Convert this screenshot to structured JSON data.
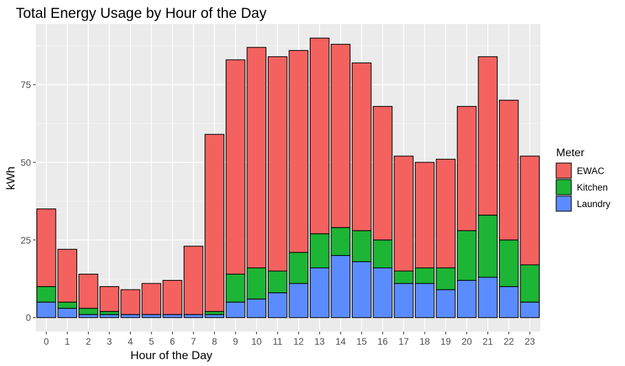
{
  "chart_data": {
    "type": "bar",
    "stacked": true,
    "title": "Total Energy Usage by Hour of the Day",
    "xlabel": "Hour of the Day",
    "ylabel": "kWh",
    "categories": [
      "0",
      "1",
      "2",
      "3",
      "4",
      "5",
      "6",
      "7",
      "8",
      "9",
      "10",
      "11",
      "12",
      "13",
      "14",
      "15",
      "16",
      "17",
      "18",
      "19",
      "20",
      "21",
      "22",
      "23"
    ],
    "ylim": [
      -4.5,
      94.5
    ],
    "yticks": [
      0,
      25,
      50,
      75
    ],
    "grid": true,
    "legend_title": "Meter",
    "legend_position": "right",
    "series": [
      {
        "name": "Laundry",
        "color": "#5b8cff",
        "values": [
          5,
          3,
          1,
          1,
          1,
          1,
          1,
          1,
          1,
          5,
          6,
          8,
          11,
          16,
          20,
          18,
          16,
          11,
          11,
          9,
          12,
          13,
          10,
          5
        ]
      },
      {
        "name": "Kitchen",
        "color": "#1db535",
        "values": [
          5,
          2,
          2,
          1,
          0,
          0,
          0,
          0,
          1,
          9,
          10,
          7,
          10,
          11,
          9,
          10,
          9,
          4,
          5,
          7,
          16,
          20,
          15,
          12
        ]
      },
      {
        "name": "EWAC",
        "color": "#f4625f",
        "values": [
          25,
          17,
          11,
          8,
          8,
          10,
          11,
          22,
          57,
          69,
          71,
          69,
          65,
          63,
          59,
          54,
          43,
          37,
          34,
          35,
          40,
          51,
          45,
          35
        ]
      }
    ],
    "legend_order": [
      "EWAC",
      "Kitchen",
      "Laundry"
    ]
  }
}
